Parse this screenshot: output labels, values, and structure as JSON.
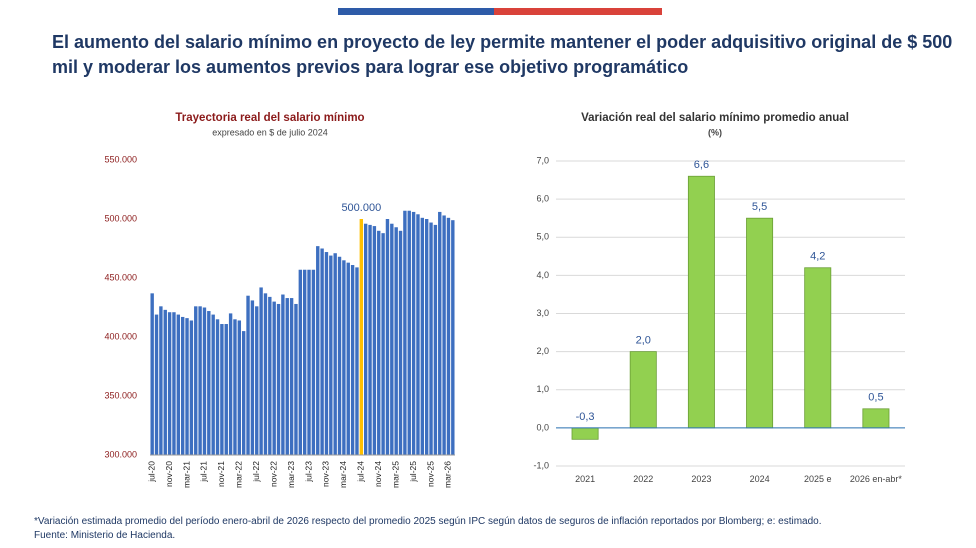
{
  "header": {
    "title": "El aumento del salario mínimo en proyecto de ley permite mantener el poder adquisitivo original de $ 500 mil y moderar los aumentos previos para lograr ese objetivo programático"
  },
  "chart_data": [
    {
      "type": "bar",
      "title": "Trayectoria real del salario mínimo",
      "subtitle": "expresado en $ de julio 2024",
      "categories": [
        "jul-20",
        null,
        null,
        null,
        "nov-20",
        null,
        null,
        null,
        "mar-21",
        null,
        null,
        null,
        "jul-21",
        null,
        null,
        null,
        "nov-21",
        null,
        null,
        null,
        "mar-22",
        null,
        null,
        null,
        "jul-22",
        null,
        null,
        null,
        "nov-22",
        null,
        null,
        null,
        "mar-23",
        null,
        null,
        null,
        "jul-23",
        null,
        null,
        null,
        "nov-23",
        null,
        null,
        null,
        "mar-24",
        null,
        null,
        null,
        "jul-24",
        null,
        null,
        null,
        "nov-24",
        null,
        null,
        null,
        "mar-25",
        null,
        null,
        null,
        "jul-25",
        null,
        null,
        null,
        "nov-25",
        null,
        null,
        null,
        "mar-26",
        null
      ],
      "values": [
        437000,
        419000,
        426000,
        423000,
        421000,
        421000,
        419000,
        417000,
        416000,
        414000,
        426000,
        426000,
        425000,
        422000,
        419000,
        415000,
        411000,
        411000,
        420000,
        415000,
        414000,
        405000,
        435000,
        431000,
        426000,
        442000,
        437000,
        434000,
        430000,
        428000,
        436000,
        433000,
        433000,
        428000,
        457000,
        457000,
        457000,
        457000,
        477000,
        475000,
        472000,
        469000,
        471000,
        468000,
        465000,
        463000,
        461000,
        459000,
        500000,
        496000,
        495000,
        494000,
        490000,
        488000,
        500000,
        496000,
        493000,
        490000,
        507000,
        507000,
        506000,
        504000,
        501000,
        500000,
        497000,
        495000,
        506000,
        503000,
        501000,
        499000
      ],
      "value_labels": [
        null,
        null,
        null,
        null,
        null,
        null,
        null,
        null,
        null,
        null,
        null,
        null,
        null,
        null,
        null,
        null,
        null,
        null,
        null,
        null,
        null,
        null,
        null,
        null,
        null,
        null,
        null,
        null,
        null,
        null,
        null,
        null,
        null,
        null,
        null,
        null,
        null,
        null,
        null,
        null,
        null,
        null,
        null,
        null,
        null,
        null,
        null,
        null,
        "500.000",
        null,
        null,
        null,
        null,
        null,
        null,
        null,
        null,
        null,
        null,
        null,
        null,
        null,
        null,
        null,
        null,
        null,
        null,
        null,
        null,
        null
      ],
      "colors": [
        "#3d6fc0",
        "#3d6fc0",
        "#3d6fc0",
        "#3d6fc0",
        "#3d6fc0",
        "#3d6fc0",
        "#3d6fc0",
        "#3d6fc0",
        "#3d6fc0",
        "#3d6fc0",
        "#3d6fc0",
        "#3d6fc0",
        "#3d6fc0",
        "#3d6fc0",
        "#3d6fc0",
        "#3d6fc0",
        "#3d6fc0",
        "#3d6fc0",
        "#3d6fc0",
        "#3d6fc0",
        "#3d6fc0",
        "#3d6fc0",
        "#3d6fc0",
        "#3d6fc0",
        "#3d6fc0",
        "#3d6fc0",
        "#3d6fc0",
        "#3d6fc0",
        "#3d6fc0",
        "#3d6fc0",
        "#3d6fc0",
        "#3d6fc0",
        "#3d6fc0",
        "#3d6fc0",
        "#3d6fc0",
        "#3d6fc0",
        "#3d6fc0",
        "#3d6fc0",
        "#3d6fc0",
        "#3d6fc0",
        "#3d6fc0",
        "#3d6fc0",
        "#3d6fc0",
        "#3d6fc0",
        "#3d6fc0",
        "#3d6fc0",
        "#3d6fc0",
        "#3d6fc0",
        "#ffc000",
        "#3d6fc0",
        "#3d6fc0",
        "#3d6fc0",
        "#3d6fc0",
        "#3d6fc0",
        "#3d6fc0",
        "#3d6fc0",
        "#3d6fc0",
        "#3d6fc0",
        "#3d6fc0",
        "#3d6fc0",
        "#3d6fc0",
        "#3d6fc0",
        "#3d6fc0",
        "#3d6fc0",
        "#3d6fc0",
        "#3d6fc0",
        "#3d6fc0",
        "#3d6fc0",
        "#3d6fc0",
        "#3d6fc0"
      ],
      "ylim": [
        300000,
        550000
      ],
      "yticks": [
        {
          "value": 300000,
          "label": "300.000"
        },
        {
          "value": 350000,
          "label": "350.000"
        },
        {
          "value": 400000,
          "label": "400.000"
        },
        {
          "value": 450000,
          "label": "450.000"
        },
        {
          "value": 500000,
          "label": "500.000"
        },
        {
          "value": 550000,
          "label": "550.000"
        }
      ],
      "grid": false
    },
    {
      "type": "bar",
      "title": "Variación real del salario mínimo promedio anual",
      "subtitle": "(%)",
      "categories": [
        "2021",
        "2022",
        "2023",
        "2024",
        "2025 e",
        "2026 en-abr*"
      ],
      "values": [
        -0.3,
        2.0,
        6.6,
        5.5,
        4.2,
        0.5
      ],
      "value_labels": [
        "-0,3",
        "2,0",
        "6,6",
        "5,5",
        "4,2",
        "0,5"
      ],
      "color": "#92d050",
      "ylim": [
        -1,
        7
      ],
      "yticks": [
        {
          "value": -1,
          "label": "-1,0"
        },
        {
          "value": 0,
          "label": "0,0"
        },
        {
          "value": 1,
          "label": "1,0"
        },
        {
          "value": 2,
          "label": "2,0"
        },
        {
          "value": 3,
          "label": "3,0"
        },
        {
          "value": 4,
          "label": "4,0"
        },
        {
          "value": 5,
          "label": "5,0"
        },
        {
          "value": 6,
          "label": "6,0"
        },
        {
          "value": 7,
          "label": "7,0"
        }
      ],
      "grid": true
    }
  ],
  "footnotes": [
    "*Variación estimada promedio del período enero-abril de 2026 respecto del promedio 2025 según IPC según datos de seguros de inflación reportados por Blomberg; e: estimado.",
    "Fuente: Ministerio de Hacienda."
  ]
}
